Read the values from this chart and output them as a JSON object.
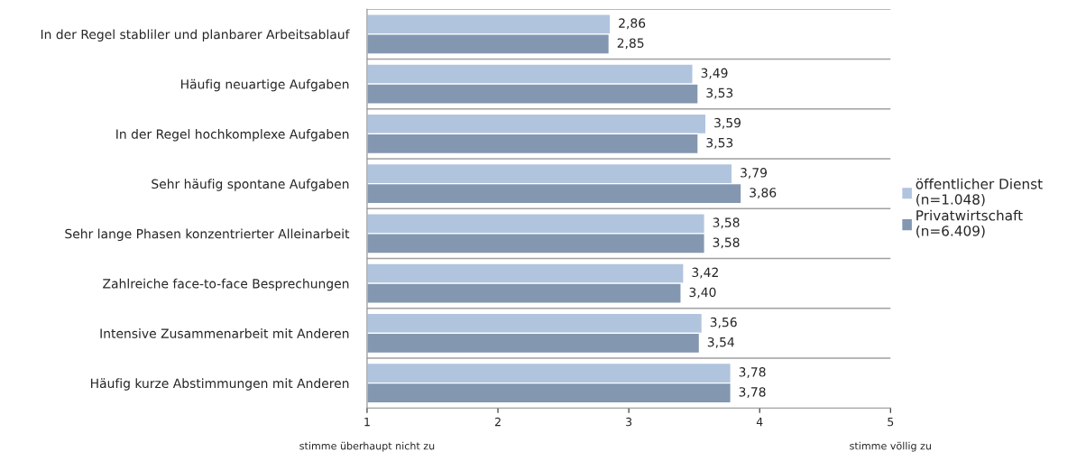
{
  "chart_data": {
    "type": "bar",
    "orientation": "horizontal",
    "categories": [
      "In der Regel stabliler und planbarer Arbeitsablauf",
      "Häufig neuartige Aufgaben",
      "In der Regel hochkomplexe Aufgaben",
      "Sehr häufig spontane Aufgaben",
      "Sehr lange Phasen konzentrierter Alleinarbeit",
      "Zahlreiche face-to-face Besprechungen",
      "Intensive Zusammenarbeit mit Anderen",
      "Häufig kurze Abstimmungen mit Anderen"
    ],
    "series": [
      {
        "name": "öffentlicher Dienst\n(n=1.048)",
        "color": "#b0c4de",
        "values": [
          2.86,
          3.49,
          3.59,
          3.79,
          3.58,
          3.42,
          3.56,
          3.78
        ],
        "value_labels": [
          "2,86",
          "3,49",
          "3,59",
          "3,79",
          "3,58",
          "3,42",
          "3,56",
          "3,78"
        ]
      },
      {
        "name": "Privatwirtschaft\n(n=6.409)",
        "color": "#8497b0",
        "values": [
          2.85,
          3.53,
          3.53,
          3.86,
          3.58,
          3.4,
          3.54,
          3.78
        ],
        "value_labels": [
          "2,85",
          "3,53",
          "3,53",
          "3,86",
          "3,58",
          "3,40",
          "3,54",
          "3,78"
        ]
      }
    ],
    "xlim": [
      1,
      5
    ],
    "xticks": [
      1,
      2,
      3,
      4,
      5
    ],
    "grid": "y",
    "legend": "right",
    "annotations": [
      "stimme überhaupt nicht zu",
      "stimme völlig zu"
    ]
  }
}
